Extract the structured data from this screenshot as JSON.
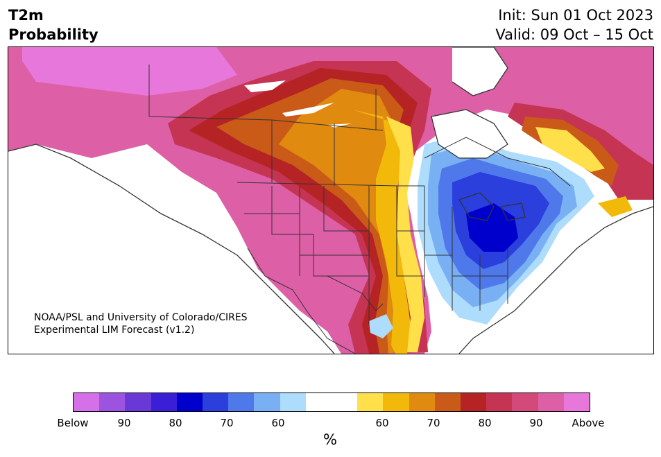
{
  "header": {
    "title_line1": "T2m",
    "title_line2": "Probability",
    "init": "Init: Sun 01 Oct 2023",
    "valid": "Valid: 09 Oct – 15 Oct"
  },
  "credit": {
    "line1": "NOAA/PSL and University of Colorado/CIRES",
    "line2": "Experimental LIM Forecast (v1.2)"
  },
  "colorbar": {
    "colors": [
      "#d670e8",
      "#9b53e0",
      "#6b38d8",
      "#3a1fd6",
      "#0000cc",
      "#2a3fdc",
      "#4f78ea",
      "#79b0f3",
      "#addcfc",
      "#ffffff",
      "#ffffff",
      "#ffe04a",
      "#f2b90a",
      "#e08a10",
      "#c95a18",
      "#b52325",
      "#c63453",
      "#d2497a",
      "#dd5fa6",
      "#e877dc"
    ],
    "tick_labels": [
      "Below",
      "90",
      "80",
      "70",
      "60",
      "60",
      "70",
      "80",
      "90",
      "Above"
    ],
    "unit": "%"
  },
  "map": {
    "land": "#ffffff",
    "border": "#333333"
  }
}
